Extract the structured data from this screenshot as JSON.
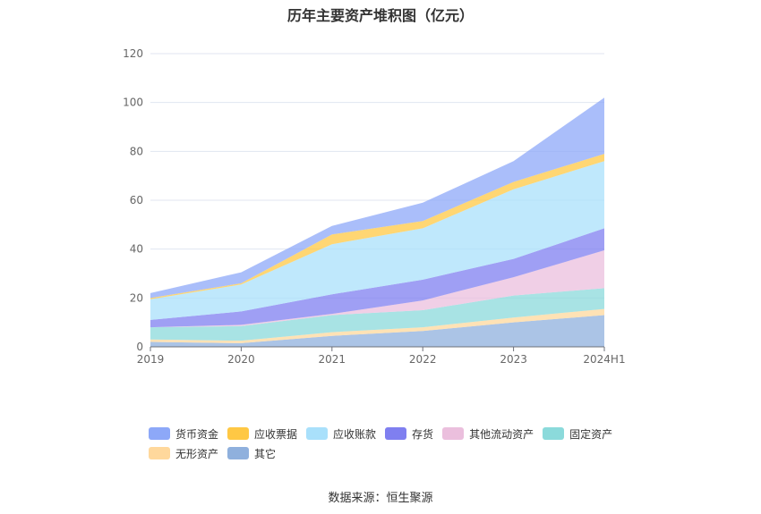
{
  "chart_data": {
    "type": "area",
    "stacked": true,
    "title": "历年主要资产堆积图（亿元）",
    "categories": [
      "2019",
      "2020",
      "2021",
      "2022",
      "2023",
      "2024H1"
    ],
    "y_ticks": [
      "0",
      "20",
      "40",
      "60",
      "80",
      "100",
      "120"
    ],
    "ylim": [
      0,
      120
    ],
    "grid": true,
    "legend_position": "bottom",
    "series": [
      {
        "name": "其它",
        "color": "#8fb0dd",
        "values": [
          2.0,
          1.5,
          4.5,
          6.5,
          10.0,
          13.0
        ]
      },
      {
        "name": "无形资产",
        "color": "#ffd89c",
        "values": [
          1.0,
          1.0,
          1.5,
          1.5,
          2.0,
          2.5
        ]
      },
      {
        "name": "固定资产",
        "color": "#8bdadb",
        "values": [
          5.0,
          6.0,
          7.0,
          7.0,
          9.0,
          8.5
        ]
      },
      {
        "name": "其他流动资产",
        "color": "#ebbfdd",
        "values": [
          0.0,
          0.5,
          0.5,
          4.0,
          7.5,
          15.5
        ]
      },
      {
        "name": "存货",
        "color": "#7f7ff0",
        "values": [
          3.0,
          5.5,
          8.0,
          8.5,
          7.5,
          9.0
        ]
      },
      {
        "name": "应收账款",
        "color": "#a9e0fb",
        "values": [
          8.5,
          11.0,
          20.5,
          21.0,
          28.5,
          27.5
        ]
      },
      {
        "name": "应收票据",
        "color": "#ffc844",
        "values": [
          0.5,
          0.5,
          4.0,
          3.0,
          3.0,
          3.0
        ]
      },
      {
        "name": "货币资金",
        "color": "#8da8f8",
        "values": [
          2.0,
          4.5,
          3.5,
          7.5,
          8.5,
          23.0
        ]
      }
    ],
    "legend_order": [
      "货币资金",
      "应收票据",
      "应收账款",
      "存货",
      "其他流动资产",
      "固定资产",
      "无形资产",
      "其它"
    ]
  },
  "footer": {
    "source": "数据来源：恒生聚源"
  }
}
